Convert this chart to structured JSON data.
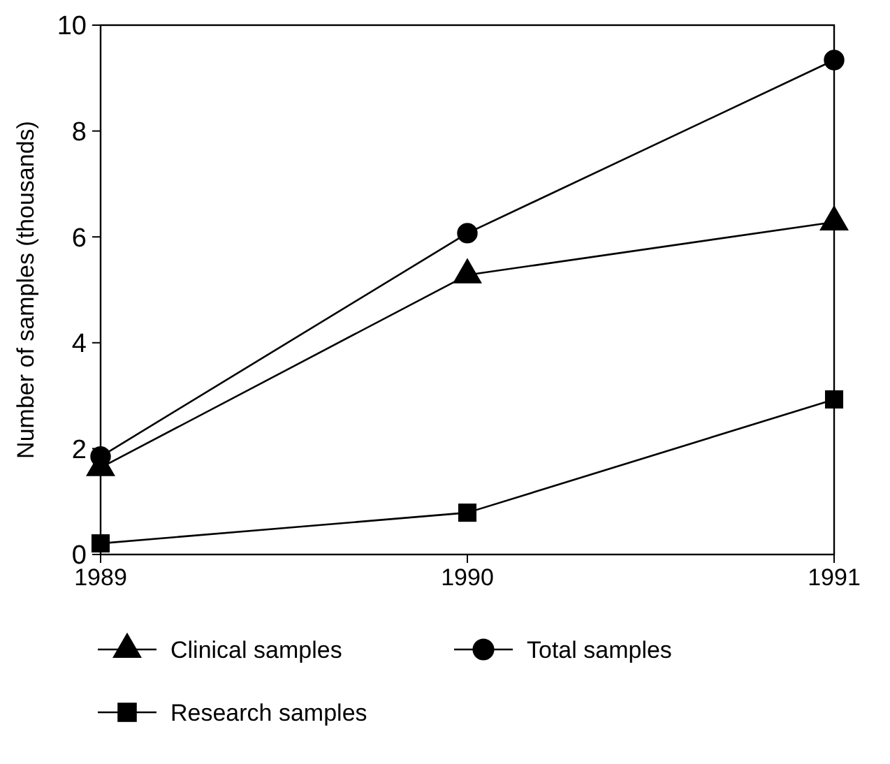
{
  "chart_data": {
    "type": "line",
    "ylabel": "Number of samples (thousands)",
    "x": [
      1989,
      1990,
      1991
    ],
    "xlim": [
      1989,
      1991
    ],
    "xticks": [
      1989,
      1990,
      1991
    ],
    "ylim": [
      0,
      10
    ],
    "yticks": [
      0,
      2,
      4,
      6,
      8,
      10
    ],
    "legend": "bottom",
    "grid": false,
    "line_style": "solid",
    "series": [
      {
        "name": "Clinical samples",
        "color": "#000000",
        "marker": "triangle",
        "values": [
          1.64,
          5.28,
          6.28
        ]
      },
      {
        "name": "Total samples",
        "color": "#000000",
        "marker": "circle",
        "values": [
          1.85,
          6.07,
          9.34
        ]
      },
      {
        "name": "Research samples",
        "color": "#000000",
        "marker": "square",
        "values": [
          0.21,
          0.79,
          2.93
        ]
      }
    ]
  }
}
